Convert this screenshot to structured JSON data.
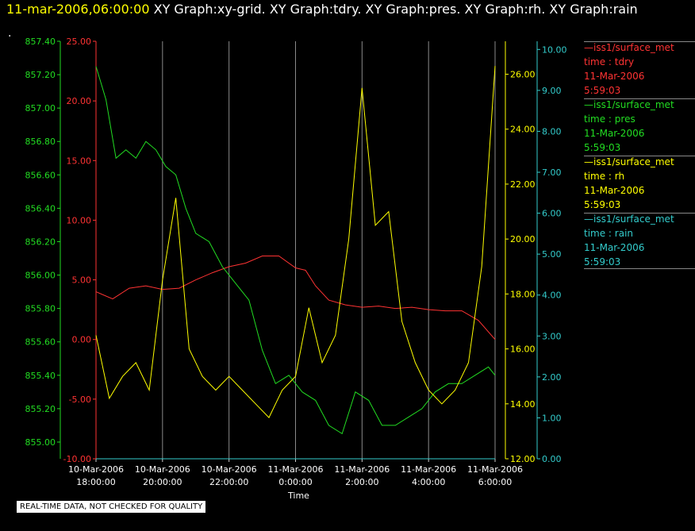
{
  "header": {
    "timestamp": "11-mar-2006,06:00:00",
    "titles": "XY Graph:xy-grid.  XY Graph:tdry.  XY Graph:pres.  XY Graph:rh.  XY Graph:rain",
    "dot": "."
  },
  "disclaimer": "REAL-TIME DATA, NOT CHECKED FOR QUALITY",
  "legend": [
    {
      "source": "—iss1/surface_met",
      "label": "time : tdry",
      "date": "11-Mar-2006",
      "time": "5:59:03",
      "color": "#ff3333"
    },
    {
      "source": "—iss1/surface_met",
      "label": "time : pres",
      "date": "11-Mar-2006",
      "time": "5:59:03",
      "color": "#22dd22"
    },
    {
      "source": "—iss1/surface_met",
      "label": "time : rh",
      "date": "11-Mar-2006",
      "time": "5:59:03",
      "color": "#ffff00"
    },
    {
      "source": "—iss1/surface_met",
      "label": "time : rain",
      "date": "11-Mar-2006",
      "time": "5:59:03",
      "color": "#33cccc"
    }
  ],
  "chart_data": {
    "type": "line",
    "xlabel": "Time",
    "x_ticks": [
      {
        "date": "10-Mar-2006",
        "time": "18:00:00"
      },
      {
        "date": "10-Mar-2006",
        "time": "20:00:00"
      },
      {
        "date": "10-Mar-2006",
        "time": "22:00:00"
      },
      {
        "date": "11-Mar-2006",
        "time": "0:00:00"
      },
      {
        "date": "11-Mar-2006",
        "time": "2:00:00"
      },
      {
        "date": "11-Mar-2006",
        "time": "4:00:00"
      },
      {
        "date": "11-Mar-2006",
        "time": "6:00:00"
      }
    ],
    "x_start": "10-Mar-2006 18:00:00",
    "x_end": "11-Mar-2006 6:00:00",
    "grid": "vertical",
    "axes": {
      "pres": {
        "color": "#22dd22",
        "ylim": [
          854.9,
          857.4
        ],
        "ticks": [
          "855.00",
          "855.20",
          "855.40",
          "855.60",
          "855.80",
          "856.00",
          "856.20",
          "856.40",
          "856.60",
          "856.80",
          "857.00",
          "857.20",
          "857.40"
        ]
      },
      "tdry": {
        "color": "#ff3333",
        "ylim": [
          -10,
          25
        ],
        "ticks": [
          "-10.00",
          "-5.00",
          "0.00",
          "5.00",
          "10.00",
          "15.00",
          "20.00",
          "25.00"
        ]
      },
      "rh": {
        "color": "#ffff00",
        "ylim": [
          12,
          27.2
        ],
        "ticks": [
          "12.00",
          "14.00",
          "16.00",
          "18.00",
          "20.00",
          "22.00",
          "24.00",
          "26.00"
        ]
      },
      "rain": {
        "color": "#33cccc",
        "ylim": [
          0,
          10.2
        ],
        "ticks": [
          "0.00",
          "1.00",
          "2.00",
          "3.00",
          "4.00",
          "5.00",
          "6.00",
          "7.00",
          "8.00",
          "9.00",
          "10.00"
        ]
      }
    },
    "series": [
      {
        "name": "tdry",
        "axis": "tdry",
        "color": "#ff3333",
        "x": [
          18.0,
          18.5,
          19.0,
          19.5,
          20.0,
          20.5,
          21.0,
          21.5,
          22.0,
          22.5,
          23.0,
          23.5,
          24.0,
          24.3,
          24.6,
          25.0,
          25.5,
          26.0,
          26.5,
          27.0,
          27.5,
          28.0,
          28.5,
          29.0,
          29.5,
          30.0
        ],
        "values": [
          4.0,
          3.4,
          4.3,
          4.5,
          4.2,
          4.3,
          5.0,
          5.6,
          6.1,
          6.4,
          7.0,
          7.0,
          6.0,
          5.8,
          4.5,
          3.3,
          2.9,
          2.7,
          2.8,
          2.6,
          2.7,
          2.5,
          2.4,
          2.4,
          1.6,
          0.0
        ]
      },
      {
        "name": "pres",
        "axis": "pres",
        "color": "#22dd22",
        "x": [
          18.0,
          18.3,
          18.6,
          18.9,
          19.2,
          19.5,
          19.8,
          20.1,
          20.4,
          20.7,
          21.0,
          21.4,
          21.8,
          22.2,
          22.6,
          23.0,
          23.4,
          23.8,
          24.2,
          24.6,
          25.0,
          25.4,
          25.8,
          26.2,
          26.6,
          27.0,
          27.4,
          27.8,
          28.2,
          28.6,
          29.0,
          29.4,
          29.8,
          30.0
        ],
        "values": [
          857.25,
          857.05,
          856.7,
          856.75,
          856.7,
          856.8,
          856.75,
          856.65,
          856.6,
          856.4,
          856.25,
          856.2,
          856.05,
          855.95,
          855.85,
          855.55,
          855.35,
          855.4,
          855.3,
          855.25,
          855.1,
          855.05,
          855.3,
          855.25,
          855.1,
          855.1,
          855.15,
          855.2,
          855.3,
          855.35,
          855.35,
          855.4,
          855.45,
          855.4
        ]
      },
      {
        "name": "rh",
        "axis": "rh",
        "color": "#ffff00",
        "x": [
          18.0,
          18.4,
          18.8,
          19.2,
          19.6,
          20.0,
          20.4,
          20.8,
          21.2,
          21.6,
          22.0,
          22.4,
          22.8,
          23.2,
          23.6,
          24.0,
          24.4,
          24.8,
          25.2,
          25.6,
          26.0,
          26.4,
          26.8,
          27.2,
          27.6,
          28.0,
          28.4,
          28.8,
          29.2,
          29.6,
          30.0
        ],
        "values": [
          16.5,
          14.2,
          15.0,
          15.5,
          14.5,
          18.5,
          21.5,
          16.0,
          15.0,
          14.5,
          15.0,
          14.5,
          14.0,
          13.5,
          14.5,
          15.0,
          17.5,
          15.5,
          16.5,
          20.0,
          25.5,
          20.5,
          21.0,
          17.0,
          15.5,
          14.5,
          14.0,
          14.5,
          15.5,
          19.0,
          26.3
        ]
      },
      {
        "name": "rain",
        "axis": "rain",
        "color": "#33cccc",
        "x": [
          18.0,
          30.0
        ],
        "values": [
          0.0,
          0.0
        ]
      }
    ]
  }
}
